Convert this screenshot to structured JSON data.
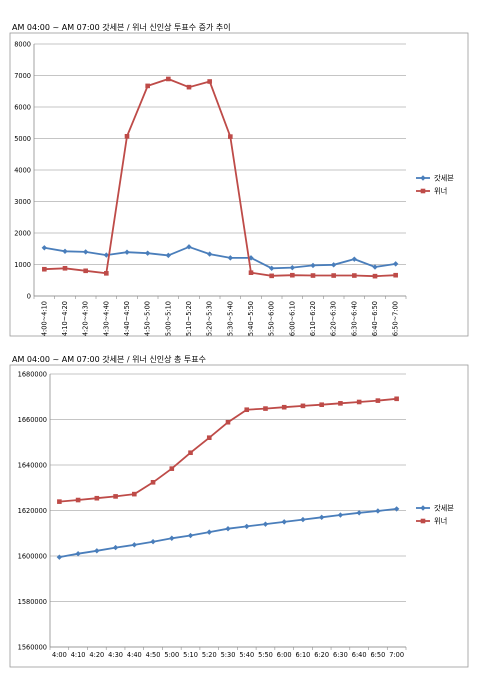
{
  "chart_data": [
    {
      "type": "line",
      "title": "AM 04:00 ~ AM 07:00 갓세븐 / 위너 신인상 투표수 증가 추이",
      "categories": [
        "4:00~4:10",
        "4:10~4:20",
        "4:20~4:30",
        "4:30~4:40",
        "4:40~4:50",
        "4:50~5:00",
        "5:00~5:10",
        "5:10~5:20",
        "5:20~5:30",
        "5:30~5:40",
        "5:40~5:50",
        "5:50~6:00",
        "6:00~6:10",
        "6:10~6:20",
        "6:20~6:30",
        "6:30~6:40",
        "6:40~6:50",
        "6:50~7:00"
      ],
      "series": [
        {
          "name": "갓세븐",
          "color": "#4a7ebb",
          "marker": "diamond",
          "values": [
            1530,
            1420,
            1400,
            1300,
            1390,
            1360,
            1290,
            1560,
            1330,
            1210,
            1210,
            880,
            900,
            970,
            990,
            1170,
            920,
            1020
          ]
        },
        {
          "name": "위너",
          "color": "#be4b48",
          "marker": "square",
          "values": [
            850,
            880,
            800,
            720,
            5070,
            6670,
            6890,
            6630,
            6810,
            5060,
            740,
            640,
            660,
            650,
            650,
            650,
            630,
            660
          ]
        }
      ],
      "ylim": [
        0,
        8000
      ],
      "yticks": [
        "0",
        "1000",
        "2000",
        "3000",
        "4000",
        "5000",
        "6000",
        "7000",
        "8000"
      ],
      "legend": "right",
      "grid": true
    },
    {
      "type": "line",
      "title": "AM 04:00 ~ AM 07:00 갓세븐 / 위너 신인상 총 투표수",
      "categories": [
        "4:00",
        "4:10",
        "4:20",
        "4:30",
        "4:40",
        "4:50",
        "5:00",
        "5:10",
        "5:20",
        "5:30",
        "5:40",
        "5:50",
        "6:00",
        "6:10",
        "6:20",
        "6:30",
        "6:40",
        "6:50",
        "7:00"
      ],
      "series": [
        {
          "name": "갓세븐",
          "color": "#4a7ebb",
          "marker": "diamond",
          "values": [
            1599500,
            1601000,
            1602300,
            1603700,
            1604900,
            1606300,
            1607800,
            1609000,
            1610500,
            1612000,
            1613000,
            1614000,
            1615000,
            1616000,
            1617000,
            1618000,
            1619000,
            1619800,
            1620700
          ]
        },
        {
          "name": "위너",
          "color": "#be4b48",
          "marker": "square",
          "values": [
            1623900,
            1624600,
            1625400,
            1626200,
            1627200,
            1632400,
            1638400,
            1645400,
            1652000,
            1658800,
            1664300,
            1664800,
            1665400,
            1666000,
            1666500,
            1667100,
            1667700,
            1668300,
            1669100
          ]
        }
      ],
      "ylim": [
        1560000,
        1680000
      ],
      "yticks": [
        "1560000",
        "1580000",
        "1600000",
        "1620000",
        "1640000",
        "1660000",
        "1680000"
      ],
      "legend": "right",
      "grid": true
    }
  ]
}
